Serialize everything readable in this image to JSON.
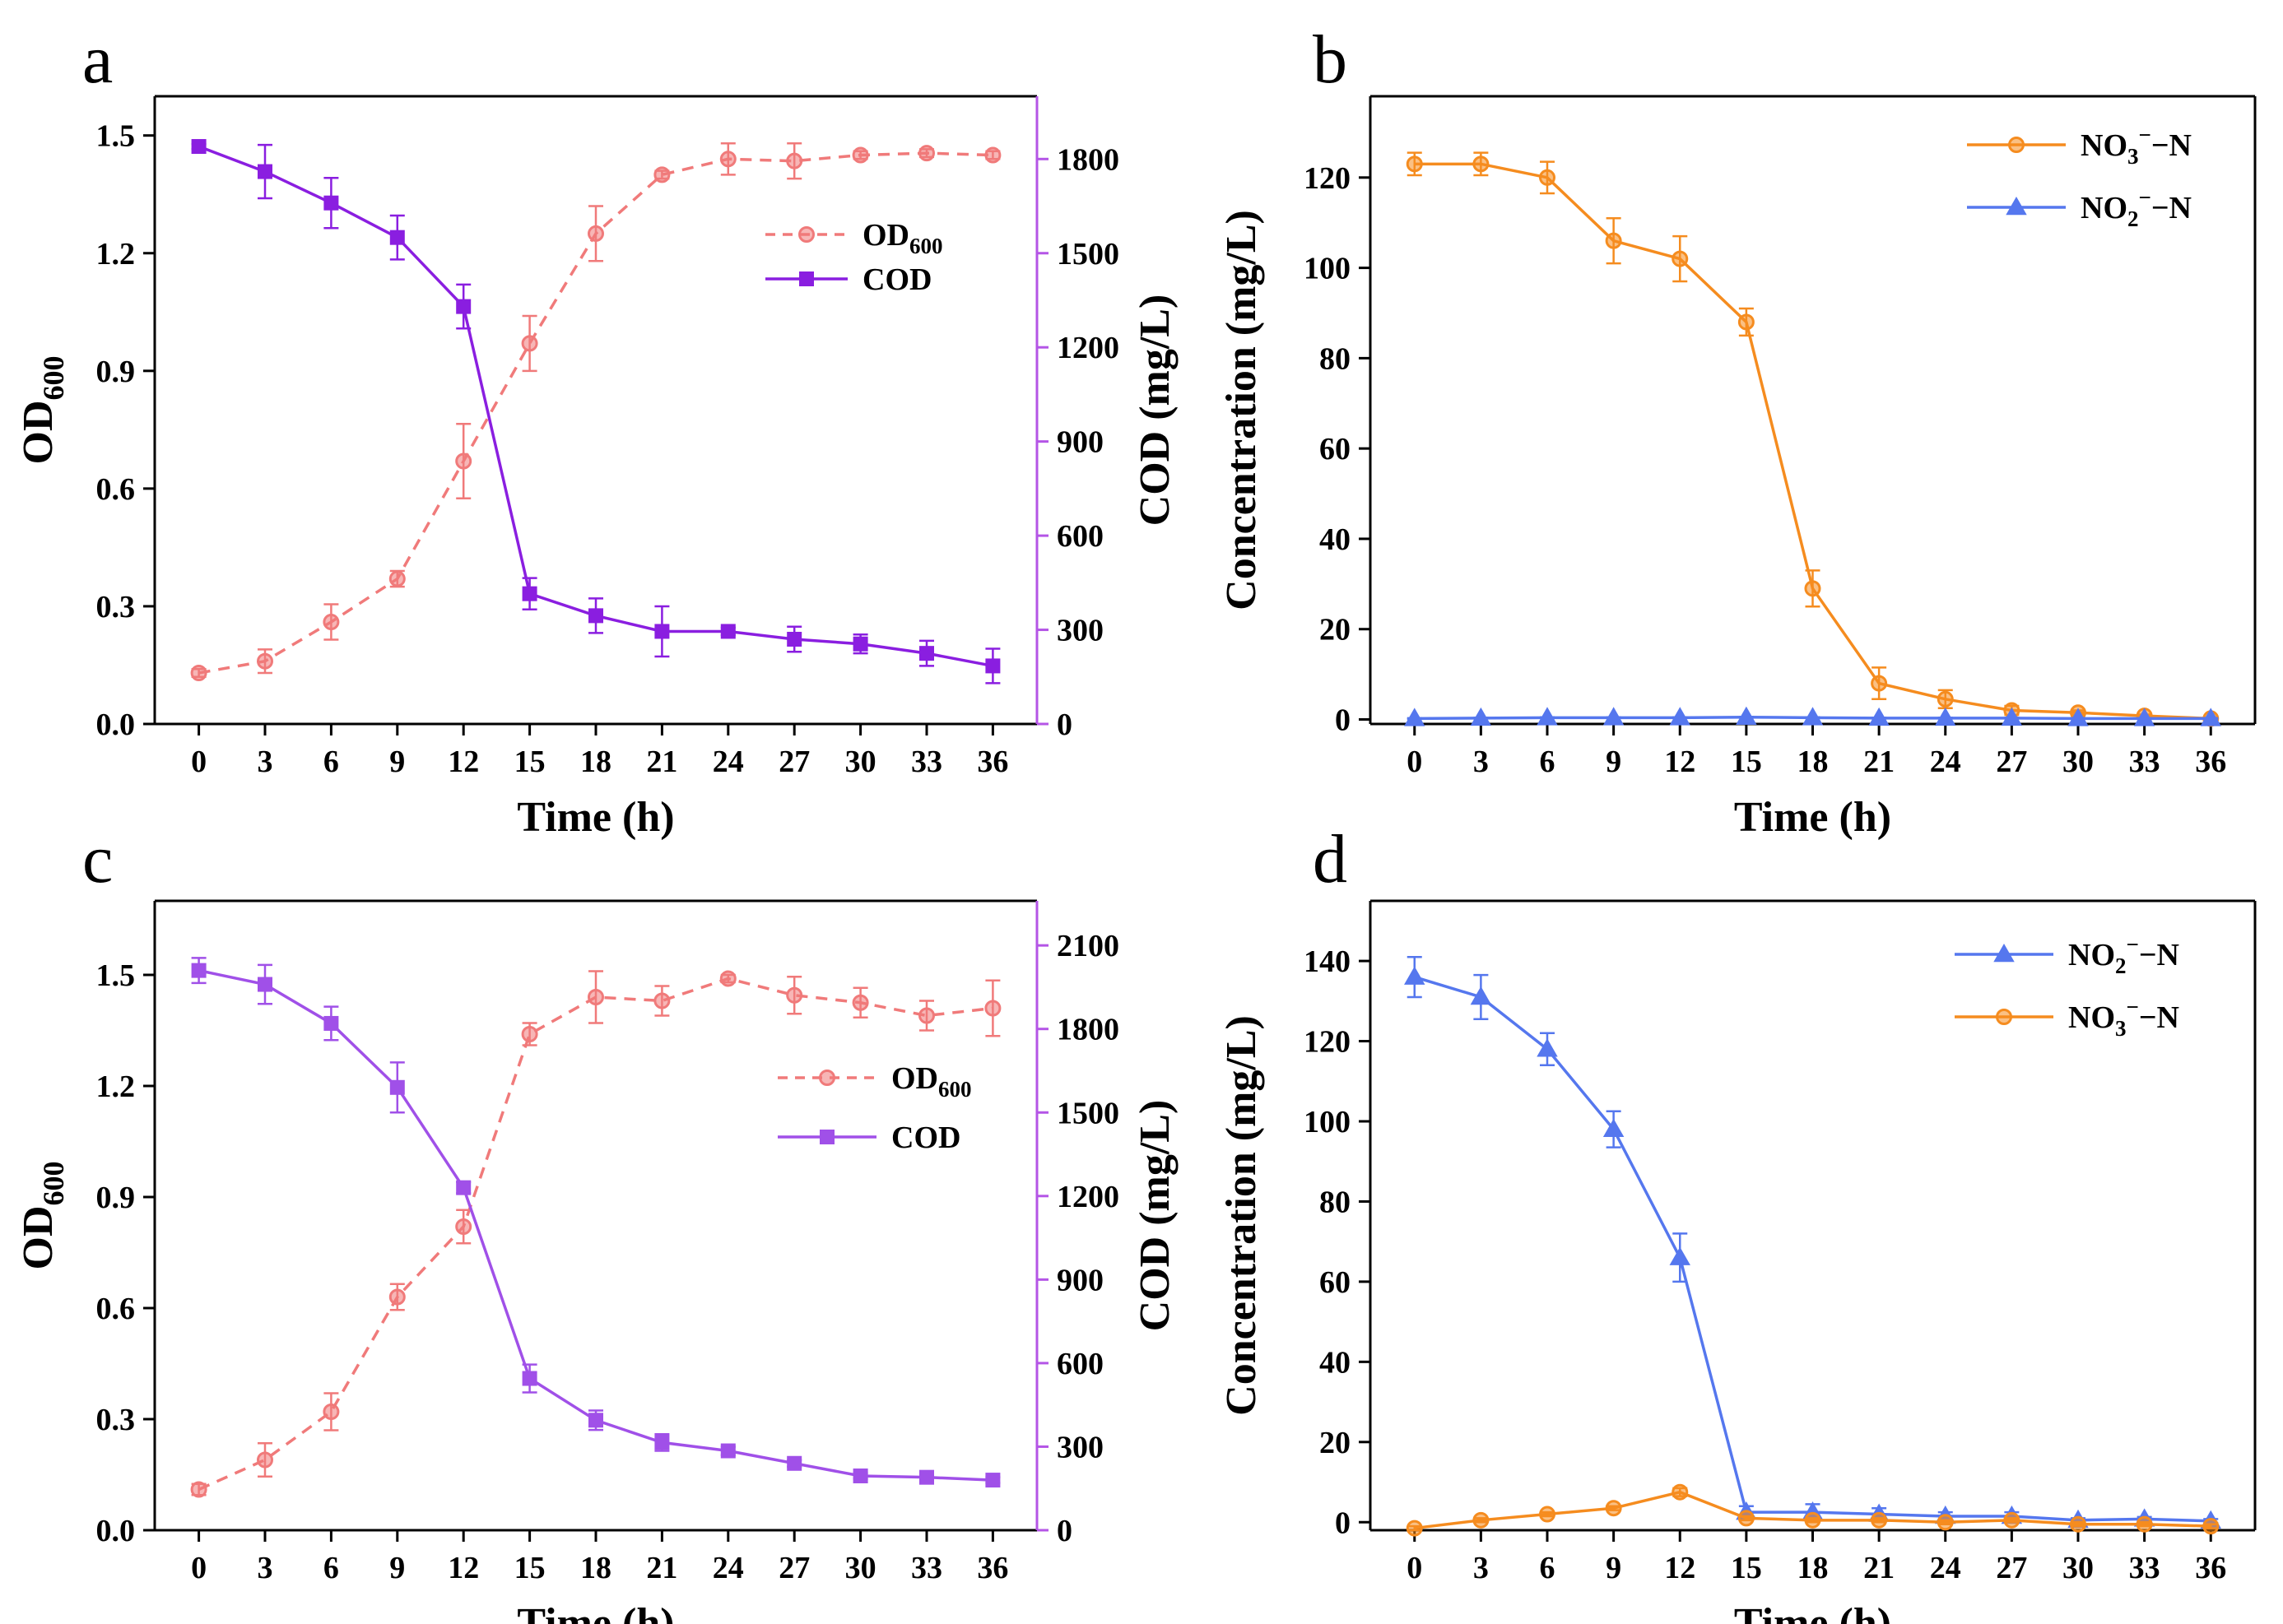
{
  "chart_data": [
    {
      "panel": "a",
      "type": "line",
      "x": [
        0,
        3,
        6,
        9,
        12,
        15,
        18,
        21,
        24,
        27,
        30,
        33,
        36
      ],
      "xlabel": "Time (h)",
      "xlim": [
        -2,
        38
      ],
      "xticks": [
        0,
        3,
        6,
        9,
        12,
        15,
        18,
        21,
        24,
        27,
        30,
        33,
        36
      ],
      "y_left": {
        "label_main": "OD",
        "label_sub": "600",
        "ylim": [
          0,
          1.6
        ],
        "ticks": [
          0.0,
          0.3,
          0.6,
          0.9,
          1.2,
          1.5
        ],
        "decimals": 1
      },
      "y_right": {
        "label": "COD (mg/L)",
        "ylim": [
          0,
          2000
        ],
        "ticks": [
          0,
          300,
          600,
          900,
          1200,
          1500,
          1800
        ],
        "decimals": 0,
        "color": "#b455e6"
      },
      "legend_position": "upper-right",
      "series": [
        {
          "name": "OD",
          "name_sub": "600",
          "axis": "left",
          "color": "#f07a7a",
          "dashed": true,
          "marker": "circle",
          "values": [
            0.13,
            0.16,
            0.26,
            0.37,
            0.67,
            0.97,
            1.25,
            1.4,
            1.44,
            1.435,
            1.45,
            1.455,
            1.45
          ],
          "errors": [
            0.01,
            0.03,
            0.045,
            0.02,
            0.095,
            0.07,
            0.07,
            0.01,
            0.04,
            0.045,
            0.01,
            0.01,
            0.01
          ]
        },
        {
          "name": "COD",
          "name_sub": "",
          "axis": "right",
          "color": "#8a1ee0",
          "dashed": false,
          "marker": "square",
          "values": [
            1840,
            1760,
            1660,
            1550,
            1330,
            415,
            345,
            295,
            295,
            270,
            255,
            225,
            185
          ],
          "errors": [
            8,
            85,
            80,
            70,
            70,
            50,
            55,
            80,
            12,
            40,
            30,
            40,
            55
          ]
        }
      ]
    },
    {
      "panel": "b",
      "type": "line",
      "x": [
        0,
        3,
        6,
        9,
        12,
        15,
        18,
        21,
        24,
        27,
        30,
        33,
        36
      ],
      "xlabel": "Time (h)",
      "xlim": [
        -2,
        38
      ],
      "xticks": [
        0,
        3,
        6,
        9,
        12,
        15,
        18,
        21,
        24,
        27,
        30,
        33,
        36
      ],
      "y_left": {
        "label": "Concentration  (mg/L)",
        "ylim": [
          -1,
          138
        ],
        "ticks": [
          0,
          20,
          40,
          60,
          80,
          100,
          120
        ],
        "decimals": 0
      },
      "legend_position": "upper-right",
      "series": [
        {
          "name": "NO",
          "sub": "3",
          "sup": "−",
          "suffix": "−N",
          "axis": "left",
          "color": "#f58c1f",
          "dashed": false,
          "marker": "circle",
          "values": [
            123,
            123,
            120,
            106,
            102,
            88,
            29,
            8,
            4.5,
            2,
            1.5,
            0.8,
            0.2
          ],
          "errors": [
            2.5,
            2.5,
            3.5,
            5,
            5,
            3,
            4,
            3.5,
            2,
            1,
            0.5,
            0.3,
            0.2
          ]
        },
        {
          "name": "NO",
          "sub": "2",
          "sup": "−",
          "suffix": "−N",
          "axis": "left",
          "color": "#5577ee",
          "dashed": false,
          "marker": "triangle",
          "values": [
            0.2,
            0.3,
            0.4,
            0.4,
            0.4,
            0.5,
            0.4,
            0.3,
            0.3,
            0.3,
            0.2,
            0.2,
            0.2
          ],
          "errors": [
            0.1,
            0.1,
            0.1,
            0.1,
            0.1,
            0.1,
            0.1,
            0.1,
            0.1,
            0.1,
            0.1,
            0.1,
            0.1
          ]
        }
      ]
    },
    {
      "panel": "c",
      "type": "line",
      "x": [
        0,
        3,
        6,
        9,
        12,
        15,
        18,
        21,
        24,
        27,
        30,
        33,
        36
      ],
      "xlabel": "Time (h)",
      "xlim": [
        -2,
        38
      ],
      "xticks": [
        0,
        3,
        6,
        9,
        12,
        15,
        18,
        21,
        24,
        27,
        30,
        33,
        36
      ],
      "y_left": {
        "label_main": "OD",
        "label_sub": "600",
        "ylim": [
          0,
          1.7
        ],
        "ticks": [
          0.0,
          0.3,
          0.6,
          0.9,
          1.2,
          1.5
        ],
        "decimals": 1
      },
      "y_right": {
        "label": "COD (mg/L)",
        "ylim": [
          0,
          2260
        ],
        "ticks": [
          0,
          300,
          600,
          900,
          1200,
          1500,
          1800,
          2100
        ],
        "decimals": 0,
        "color": "#b455e6"
      },
      "legend_position": "middle-right",
      "series": [
        {
          "name": "OD",
          "name_sub": "600",
          "axis": "left",
          "color": "#f07a7a",
          "dashed": true,
          "marker": "circle",
          "values": [
            0.11,
            0.19,
            0.32,
            0.63,
            0.82,
            1.34,
            1.44,
            1.43,
            1.49,
            1.445,
            1.425,
            1.39,
            1.41
          ],
          "errors": [
            0.015,
            0.045,
            0.05,
            0.035,
            0.045,
            0.03,
            0.07,
            0.04,
            0.01,
            0.05,
            0.04,
            0.04,
            0.075
          ]
        },
        {
          "name": "COD",
          "name_sub": "",
          "axis": "right",
          "color": "#a050e8",
          "dashed": false,
          "marker": "square",
          "values": [
            2010,
            1960,
            1820,
            1590,
            1230,
            545,
            395,
            315,
            285,
            240,
            195,
            190,
            180
          ],
          "errors": [
            45,
            70,
            60,
            90,
            20,
            50,
            35,
            30,
            15,
            12,
            10,
            10,
            10
          ]
        }
      ]
    },
    {
      "panel": "d",
      "type": "line",
      "x": [
        0,
        3,
        6,
        9,
        12,
        15,
        18,
        21,
        24,
        27,
        30,
        33,
        36
      ],
      "xlabel": "Time (h)",
      "xlim": [
        -2,
        38
      ],
      "xticks": [
        0,
        3,
        6,
        9,
        12,
        15,
        18,
        21,
        24,
        27,
        30,
        33,
        36
      ],
      "y_left": {
        "label": "Concentration  (mg/L)",
        "ylim": [
          -2,
          155
        ],
        "ticks": [
          0,
          20,
          40,
          60,
          80,
          100,
          120,
          140
        ],
        "decimals": 0
      },
      "legend_position": "upper-right",
      "series": [
        {
          "name": "NO",
          "sub": "2",
          "sup": "−",
          "suffix": "−N",
          "axis": "left",
          "color": "#5577ee",
          "dashed": false,
          "marker": "triangle",
          "values": [
            136,
            131,
            118,
            98,
            66,
            2.5,
            2.5,
            2,
            1.5,
            1.5,
            0.5,
            0.8,
            0.3
          ],
          "errors": [
            5,
            5.5,
            4,
            4.5,
            6,
            1.5,
            2,
            1.5,
            1,
            1,
            0.5,
            0.5,
            0.5
          ]
        },
        {
          "name": "NO",
          "sub": "3",
          "sup": "−",
          "suffix": "−N",
          "axis": "left",
          "color": "#f58c1f",
          "dashed": false,
          "marker": "circle",
          "values": [
            -1.5,
            0.5,
            2,
            3.5,
            7.5,
            1,
            0.5,
            0.5,
            0,
            0.5,
            -0.5,
            -0.5,
            -1
          ],
          "errors": [
            0.5,
            0.5,
            0.5,
            0.5,
            1,
            0.5,
            0.5,
            0.5,
            0.5,
            0.5,
            0.5,
            0.5,
            0.5
          ]
        }
      ]
    }
  ]
}
